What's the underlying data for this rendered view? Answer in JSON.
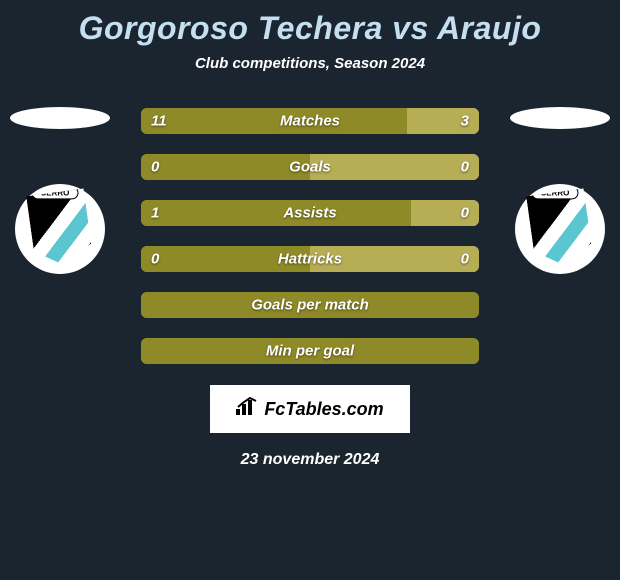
{
  "title": "Gorgoroso Techera vs Araujo",
  "subtitle": "Club competitions, Season 2024",
  "footer_logo": "FcTables.com",
  "footer_date": "23 november 2024",
  "colors": {
    "left_fill": "#8f8a28",
    "right_fill": "#b7ad55",
    "empty_fill": "#b7ad55",
    "background": "#1a2530"
  },
  "stats": [
    {
      "label": "Matches",
      "left_val": "11",
      "right_val": "3",
      "left_pct": 78.6,
      "right_pct": 21.4,
      "show_vals": true
    },
    {
      "label": "Goals",
      "left_val": "0",
      "right_val": "0",
      "left_pct": 50,
      "right_pct": 50,
      "show_vals": true
    },
    {
      "label": "Assists",
      "left_val": "1",
      "right_val": "0",
      "left_pct": 80,
      "right_pct": 20,
      "show_vals": true
    },
    {
      "label": "Hattricks",
      "left_val": "0",
      "right_val": "0",
      "left_pct": 50,
      "right_pct": 50,
      "show_vals": true
    },
    {
      "label": "Goals per match",
      "left_val": "",
      "right_val": "",
      "left_pct": 100,
      "right_pct": 0,
      "show_vals": false
    },
    {
      "label": "Min per goal",
      "left_val": "",
      "right_val": "",
      "left_pct": 100,
      "right_pct": 0,
      "show_vals": false
    }
  ],
  "club_name": "CERRO"
}
